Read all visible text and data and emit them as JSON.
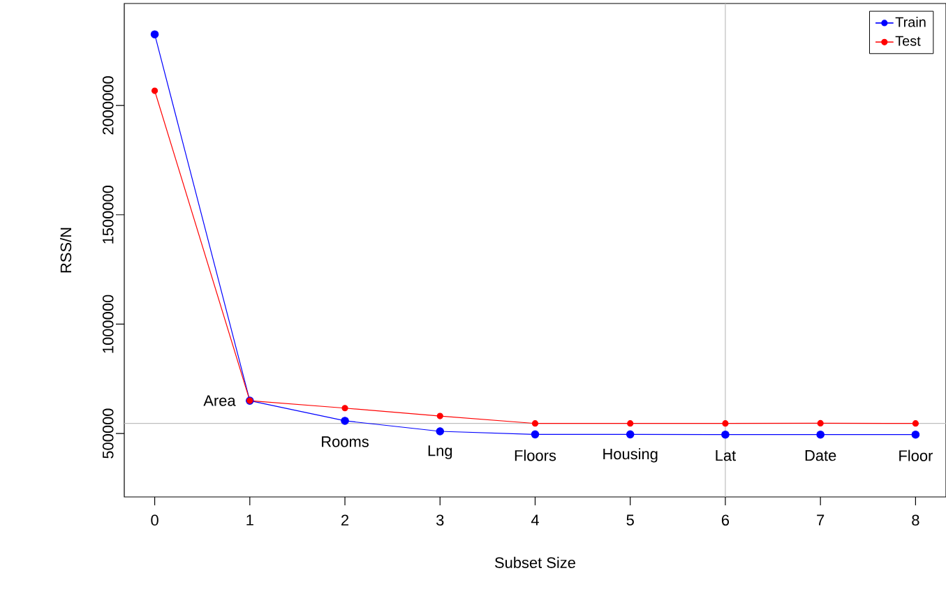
{
  "chart_data": {
    "type": "line",
    "xlabel": "Subset Size",
    "ylabel": "RSS/N",
    "x": [
      0,
      1,
      2,
      3,
      4,
      5,
      6,
      7,
      8
    ],
    "series": [
      {
        "name": "Train",
        "color": "#0000ff",
        "values": [
          2325000,
          650000,
          558000,
          510000,
          496000,
          496000,
          495000,
          495000,
          495000
        ]
      },
      {
        "name": "Test",
        "color": "#ff0000",
        "values": [
          2067000,
          650000,
          616000,
          580000,
          546000,
          546000,
          546000,
          547000,
          546000
        ]
      }
    ],
    "xlim": [
      -0.32,
      8.32
    ],
    "ylim": [
      210000,
      2466000
    ],
    "xticks": [
      0,
      1,
      2,
      3,
      4,
      5,
      6,
      7,
      8
    ],
    "yticks": [
      500000,
      1000000,
      1500000,
      2000000
    ],
    "legend": "top right",
    "marker": "circle",
    "line_style": "solid",
    "ref_lines": [
      {
        "axis": "y",
        "value": 546000,
        "color": "#bebebe"
      },
      {
        "axis": "x",
        "value": 6,
        "color": "#bebebe"
      }
    ],
    "annotations": [
      {
        "text": "Area",
        "x": 1,
        "y": 650000
      },
      {
        "text": "Rooms",
        "x": 2,
        "y": 558000
      },
      {
        "text": "Lng",
        "x": 3,
        "y": 510000
      },
      {
        "text": "Floors",
        "x": 4,
        "y": 496000
      },
      {
        "text": "Housing",
        "x": 5,
        "y": 496000
      },
      {
        "text": "Lat",
        "x": 6,
        "y": 495000
      },
      {
        "text": "Date",
        "x": 7,
        "y": 495000
      },
      {
        "text": "Floor",
        "x": 8,
        "y": 495000
      }
    ]
  }
}
